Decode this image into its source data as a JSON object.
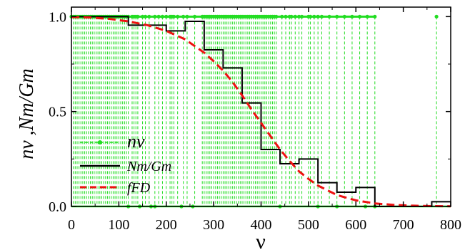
{
  "chart_data": {
    "type": "line",
    "xlabel": "ν",
    "ylabel": "nν ,Nm/Gm",
    "xlim": [
      0,
      800
    ],
    "ylim": [
      0,
      1.05
    ],
    "x_ticks": [
      0,
      100,
      200,
      300,
      400,
      500,
      600,
      700,
      800
    ],
    "y_ticks": [
      0.0,
      0.5,
      1.0
    ],
    "x_tick_labels": [
      "0",
      "100",
      "200",
      "300",
      "400",
      "500",
      "600",
      "700",
      "800"
    ],
    "y_tick_labels": [
      "0.0",
      "0.5",
      "1.0"
    ],
    "grid": false,
    "legend_position": "bottom-left",
    "series": [
      {
        "name": "nν",
        "style": "dashed-dots",
        "color": "#22dd22",
        "occupied_levels": [
          0,
          4,
          8,
          12,
          16,
          20,
          24,
          28,
          32,
          36,
          40,
          44,
          48,
          52,
          56,
          60,
          64,
          68,
          72,
          76,
          80,
          84,
          88,
          92,
          96,
          100,
          104,
          108,
          112,
          116,
          120,
          128,
          132,
          136,
          140,
          150,
          156,
          164,
          176,
          184,
          192,
          200,
          208,
          212,
          216,
          224,
          236,
          244,
          260,
          276,
          280,
          284,
          288,
          292,
          296,
          300,
          304,
          308,
          312,
          316,
          320,
          324,
          328,
          332,
          336,
          340,
          344,
          348,
          352,
          356,
          360,
          364,
          368,
          372,
          376,
          380,
          384,
          388,
          392,
          396,
          400,
          404,
          408,
          412,
          416,
          420,
          424,
          428,
          432,
          444,
          452,
          460,
          464,
          472,
          480,
          486,
          500,
          504,
          512,
          520,
          528,
          544,
          560,
          576,
          592,
          608,
          624,
          640,
          770
        ],
        "empty_levels": [
          120,
          144,
          168,
          176,
          232,
          256,
          440,
          520,
          560,
          620,
          640
        ]
      },
      {
        "name": "Nm/Gm",
        "style": "step",
        "color": "#000000",
        "steps": [
          {
            "x0": 0,
            "x1": 120,
            "y": 1.0
          },
          {
            "x0": 120,
            "x1": 200,
            "y": 0.955
          },
          {
            "x0": 200,
            "x1": 240,
            "y": 0.925
          },
          {
            "x0": 240,
            "x1": 280,
            "y": 0.975
          },
          {
            "x0": 280,
            "x1": 320,
            "y": 0.825
          },
          {
            "x0": 320,
            "x1": 360,
            "y": 0.73
          },
          {
            "x0": 360,
            "x1": 400,
            "y": 0.545
          },
          {
            "x0": 400,
            "x1": 440,
            "y": 0.3
          },
          {
            "x0": 440,
            "x1": 480,
            "y": 0.225
          },
          {
            "x0": 480,
            "x1": 520,
            "y": 0.25
          },
          {
            "x0": 520,
            "x1": 560,
            "y": 0.125
          },
          {
            "x0": 560,
            "x1": 600,
            "y": 0.075
          },
          {
            "x0": 600,
            "x1": 640,
            "y": 0.1
          },
          {
            "x0": 640,
            "x1": 760,
            "y": 0.0
          },
          {
            "x0": 760,
            "x1": 800,
            "y": 0.025
          }
        ]
      },
      {
        "name": "fFD",
        "style": "dashed",
        "color": "#ee1111",
        "x": [
          0,
          40,
          80,
          120,
          160,
          200,
          240,
          280,
          300,
          320,
          340,
          360,
          380,
          400,
          420,
          440,
          460,
          480,
          500,
          520,
          560,
          600,
          640,
          680,
          720,
          760,
          800
        ],
        "y": [
          0.998,
          0.995,
          0.988,
          0.975,
          0.955,
          0.925,
          0.88,
          0.81,
          0.765,
          0.715,
          0.655,
          0.585,
          0.51,
          0.44,
          0.37,
          0.3,
          0.24,
          0.185,
          0.145,
          0.11,
          0.06,
          0.032,
          0.016,
          0.008,
          0.004,
          0.002,
          0.001
        ]
      }
    ]
  }
}
